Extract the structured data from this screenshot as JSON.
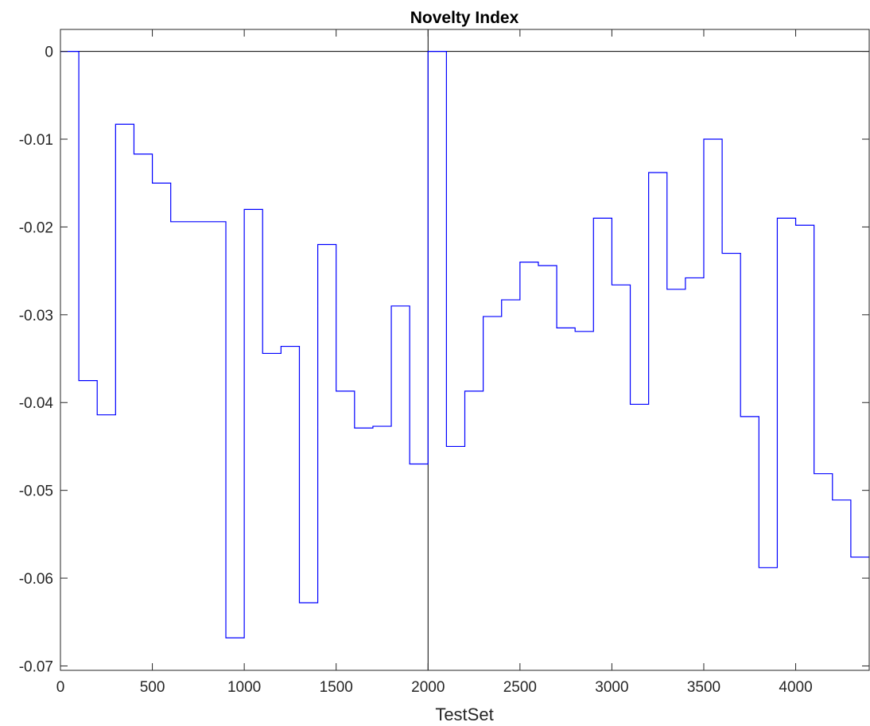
{
  "chart_data": {
    "type": "line",
    "title": "Novelty Index",
    "xlabel": "TestSet",
    "ylabel": "",
    "xlim": [
      0,
      4400
    ],
    "ylim": [
      -0.0705,
      0.0025
    ],
    "grid": false,
    "legend": null,
    "line_color": "#0000ff",
    "reference_lines": {
      "horizontal_y": 0,
      "vertical_x": 2000,
      "color": "#000000"
    },
    "x_ticks": [
      0,
      500,
      1000,
      1500,
      2000,
      2500,
      3000,
      3500,
      4000
    ],
    "x_tick_labels": [
      "0",
      "500",
      "1000",
      "1500",
      "2000",
      "2500",
      "3000",
      "3500",
      "4000"
    ],
    "y_ticks": [
      0,
      -0.01,
      -0.02,
      -0.03,
      -0.04,
      -0.05,
      -0.06,
      -0.07
    ],
    "y_tick_labels": [
      "0",
      "-0.01",
      "-0.02",
      "-0.03",
      "-0.04",
      "-0.05",
      "-0.06",
      "-0.07"
    ],
    "series": [
      {
        "step_start_x": [
          0,
          100,
          200,
          300,
          400,
          500,
          600,
          700,
          800,
          900,
          1000,
          1100,
          1200,
          1300,
          1400,
          1500,
          1600,
          1700,
          1800,
          1900,
          2000,
          2100,
          2200,
          2300,
          2400,
          2500,
          2600,
          2700,
          2800,
          2900,
          3000,
          3100,
          3200,
          3300,
          3400,
          3500,
          3600,
          3700,
          3800,
          3900,
          4000,
          4100,
          4200,
          4300
        ],
        "step_end_x": 4400,
        "values": [
          0,
          -0.0375,
          -0.0414,
          -0.0083,
          -0.0117,
          -0.015,
          -0.0194,
          -0.0194,
          -0.0194,
          -0.0668,
          -0.018,
          -0.0344,
          -0.0336,
          -0.0628,
          -0.022,
          -0.0387,
          -0.0429,
          -0.0427,
          -0.029,
          -0.047,
          0,
          -0.045,
          -0.0387,
          -0.0302,
          -0.0283,
          -0.024,
          -0.0244,
          -0.0315,
          -0.0319,
          -0.019,
          -0.0266,
          -0.0402,
          -0.0138,
          -0.0271,
          -0.0258,
          -0.01,
          -0.023,
          -0.0416,
          -0.0588,
          -0.019,
          -0.0198,
          -0.0481,
          -0.0511,
          -0.0576
        ]
      }
    ]
  }
}
